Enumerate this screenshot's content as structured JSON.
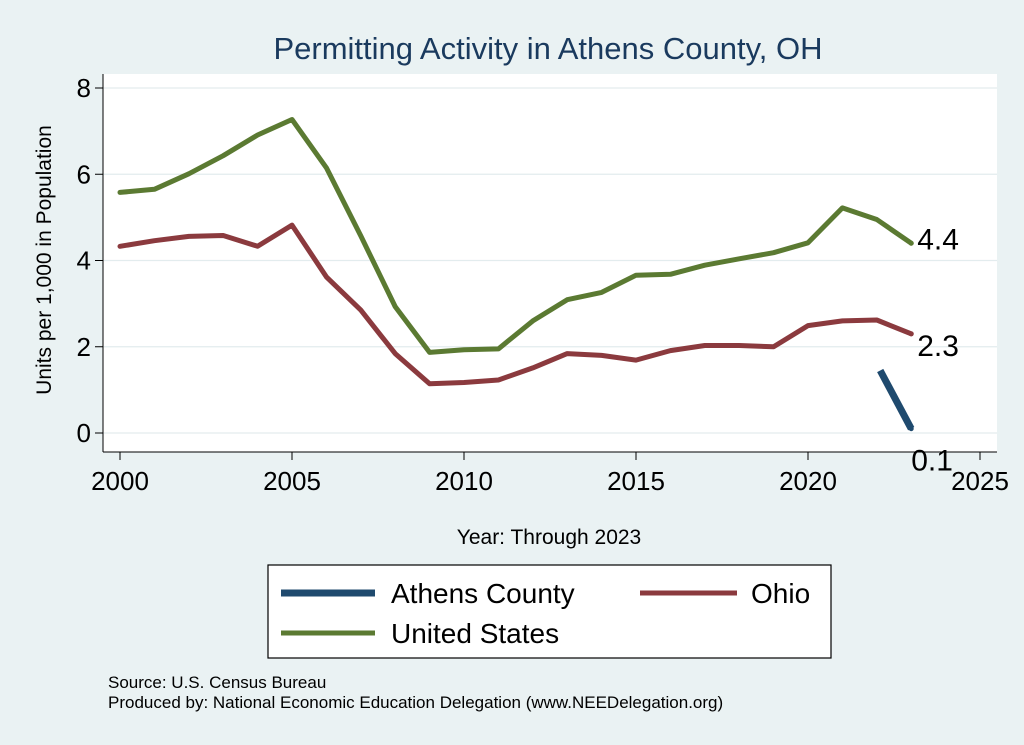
{
  "chart_data": {
    "type": "line",
    "title": "Permitting Activity in Athens County, OH",
    "xlabel": "Year: Through 2023",
    "ylabel": "Units per 1,000 in Population",
    "xlim": [
      2000,
      2025
    ],
    "ylim": [
      0,
      8
    ],
    "x_ticks": [
      "2000",
      "2005",
      "2010",
      "2015",
      "2020",
      "2025"
    ],
    "y_ticks": [
      "0",
      "2",
      "4",
      "6",
      "8"
    ],
    "grid": true,
    "series": [
      {
        "name": "Athens County",
        "color": "#1f4a6e",
        "points": [
          [
            2022.1,
            1.45
          ],
          [
            2023,
            0.1
          ]
        ],
        "end_label": "0.1"
      },
      {
        "name": "Ohio",
        "color": "#8b3a3e",
        "points": [
          [
            2000,
            4.33
          ],
          [
            2001,
            4.46
          ],
          [
            2002,
            4.56
          ],
          [
            2003,
            4.58
          ],
          [
            2004,
            4.33
          ],
          [
            2005,
            4.82
          ],
          [
            2006,
            3.62
          ],
          [
            2007,
            2.85
          ],
          [
            2008,
            1.84
          ],
          [
            2009,
            1.14
          ],
          [
            2010,
            1.17
          ],
          [
            2011,
            1.23
          ],
          [
            2012,
            1.51
          ],
          [
            2013,
            1.84
          ],
          [
            2014,
            1.8
          ],
          [
            2015,
            1.69
          ],
          [
            2016,
            1.91
          ],
          [
            2017,
            2.03
          ],
          [
            2018,
            2.03
          ],
          [
            2019,
            2.0
          ],
          [
            2020,
            2.49
          ],
          [
            2021,
            2.6
          ],
          [
            2022,
            2.62
          ],
          [
            2023,
            2.3
          ]
        ],
        "end_label": "2.3"
      },
      {
        "name": "United States",
        "color": "#5b7a32",
        "points": [
          [
            2000,
            5.58
          ],
          [
            2001,
            5.65
          ],
          [
            2002,
            6.01
          ],
          [
            2003,
            6.43
          ],
          [
            2004,
            6.91
          ],
          [
            2005,
            7.27
          ],
          [
            2006,
            6.15
          ],
          [
            2007,
            4.57
          ],
          [
            2008,
            2.93
          ],
          [
            2009,
            1.87
          ],
          [
            2010,
            1.93
          ],
          [
            2011,
            1.95
          ],
          [
            2012,
            2.6
          ],
          [
            2013,
            3.09
          ],
          [
            2014,
            3.26
          ],
          [
            2015,
            3.66
          ],
          [
            2016,
            3.68
          ],
          [
            2017,
            3.89
          ],
          [
            2018,
            4.04
          ],
          [
            2019,
            4.18
          ],
          [
            2020,
            4.41
          ],
          [
            2021,
            5.22
          ],
          [
            2022,
            4.95
          ],
          [
            2023,
            4.4
          ]
        ],
        "end_label": "4.4"
      }
    ],
    "legend": {
      "position": "bottom",
      "entries": [
        {
          "label": "Athens County",
          "color": "#1f4a6e"
        },
        {
          "label": "Ohio",
          "color": "#8b3a3e"
        },
        {
          "label": "United States",
          "color": "#5b7a32"
        }
      ]
    }
  },
  "notes": {
    "source": "Source: U.S. Census Bureau",
    "produced_by": "Produced by: National Economic Education Delegation (www.NEEDelegation.org)"
  }
}
